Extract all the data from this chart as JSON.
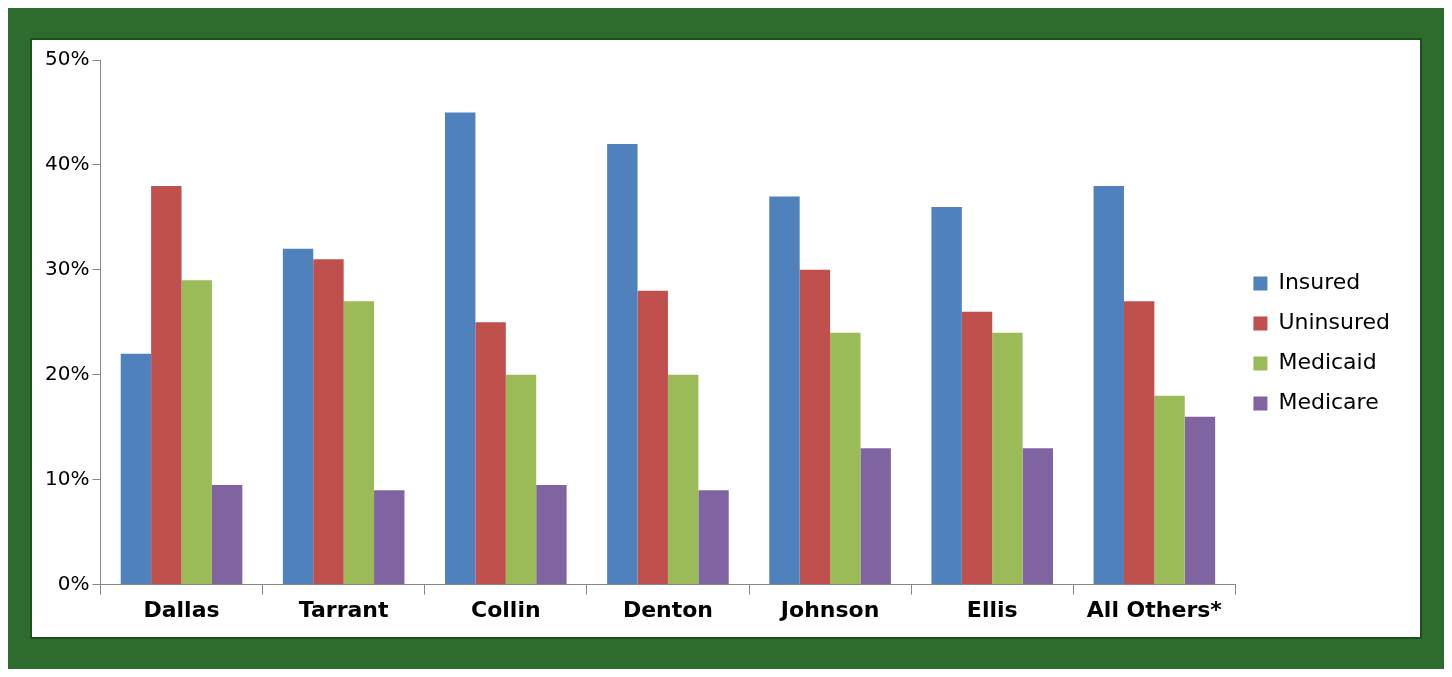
{
  "chart_data": {
    "type": "bar",
    "categories": [
      "Dallas",
      "Tarrant",
      "Collin",
      "Denton",
      "Johnson",
      "Ellis",
      "All Others*"
    ],
    "series": [
      {
        "name": "Insured",
        "color": "#4f81bd",
        "values": [
          22,
          32,
          45,
          42,
          37,
          36,
          38
        ]
      },
      {
        "name": "Uninsured",
        "color": "#c0504d",
        "values": [
          38,
          31,
          25,
          28,
          30,
          26,
          27
        ]
      },
      {
        "name": "Medicaid",
        "color": "#9bbb59",
        "values": [
          29,
          27,
          20,
          20,
          24,
          24,
          18
        ]
      },
      {
        "name": "Medicare",
        "color": "#8064a2",
        "values": [
          9.5,
          9,
          9.5,
          9,
          13,
          13,
          16
        ]
      }
    ],
    "ylim": [
      0,
      50
    ],
    "yticks": [
      {
        "value": 0,
        "label": "0%"
      },
      {
        "value": 10,
        "label": "10%"
      },
      {
        "value": 20,
        "label": "20%"
      },
      {
        "value": 30,
        "label": "30%"
      },
      {
        "value": 40,
        "label": "40%"
      },
      {
        "value": 50,
        "label": "50%"
      }
    ],
    "grid": false,
    "legend": "right"
  }
}
